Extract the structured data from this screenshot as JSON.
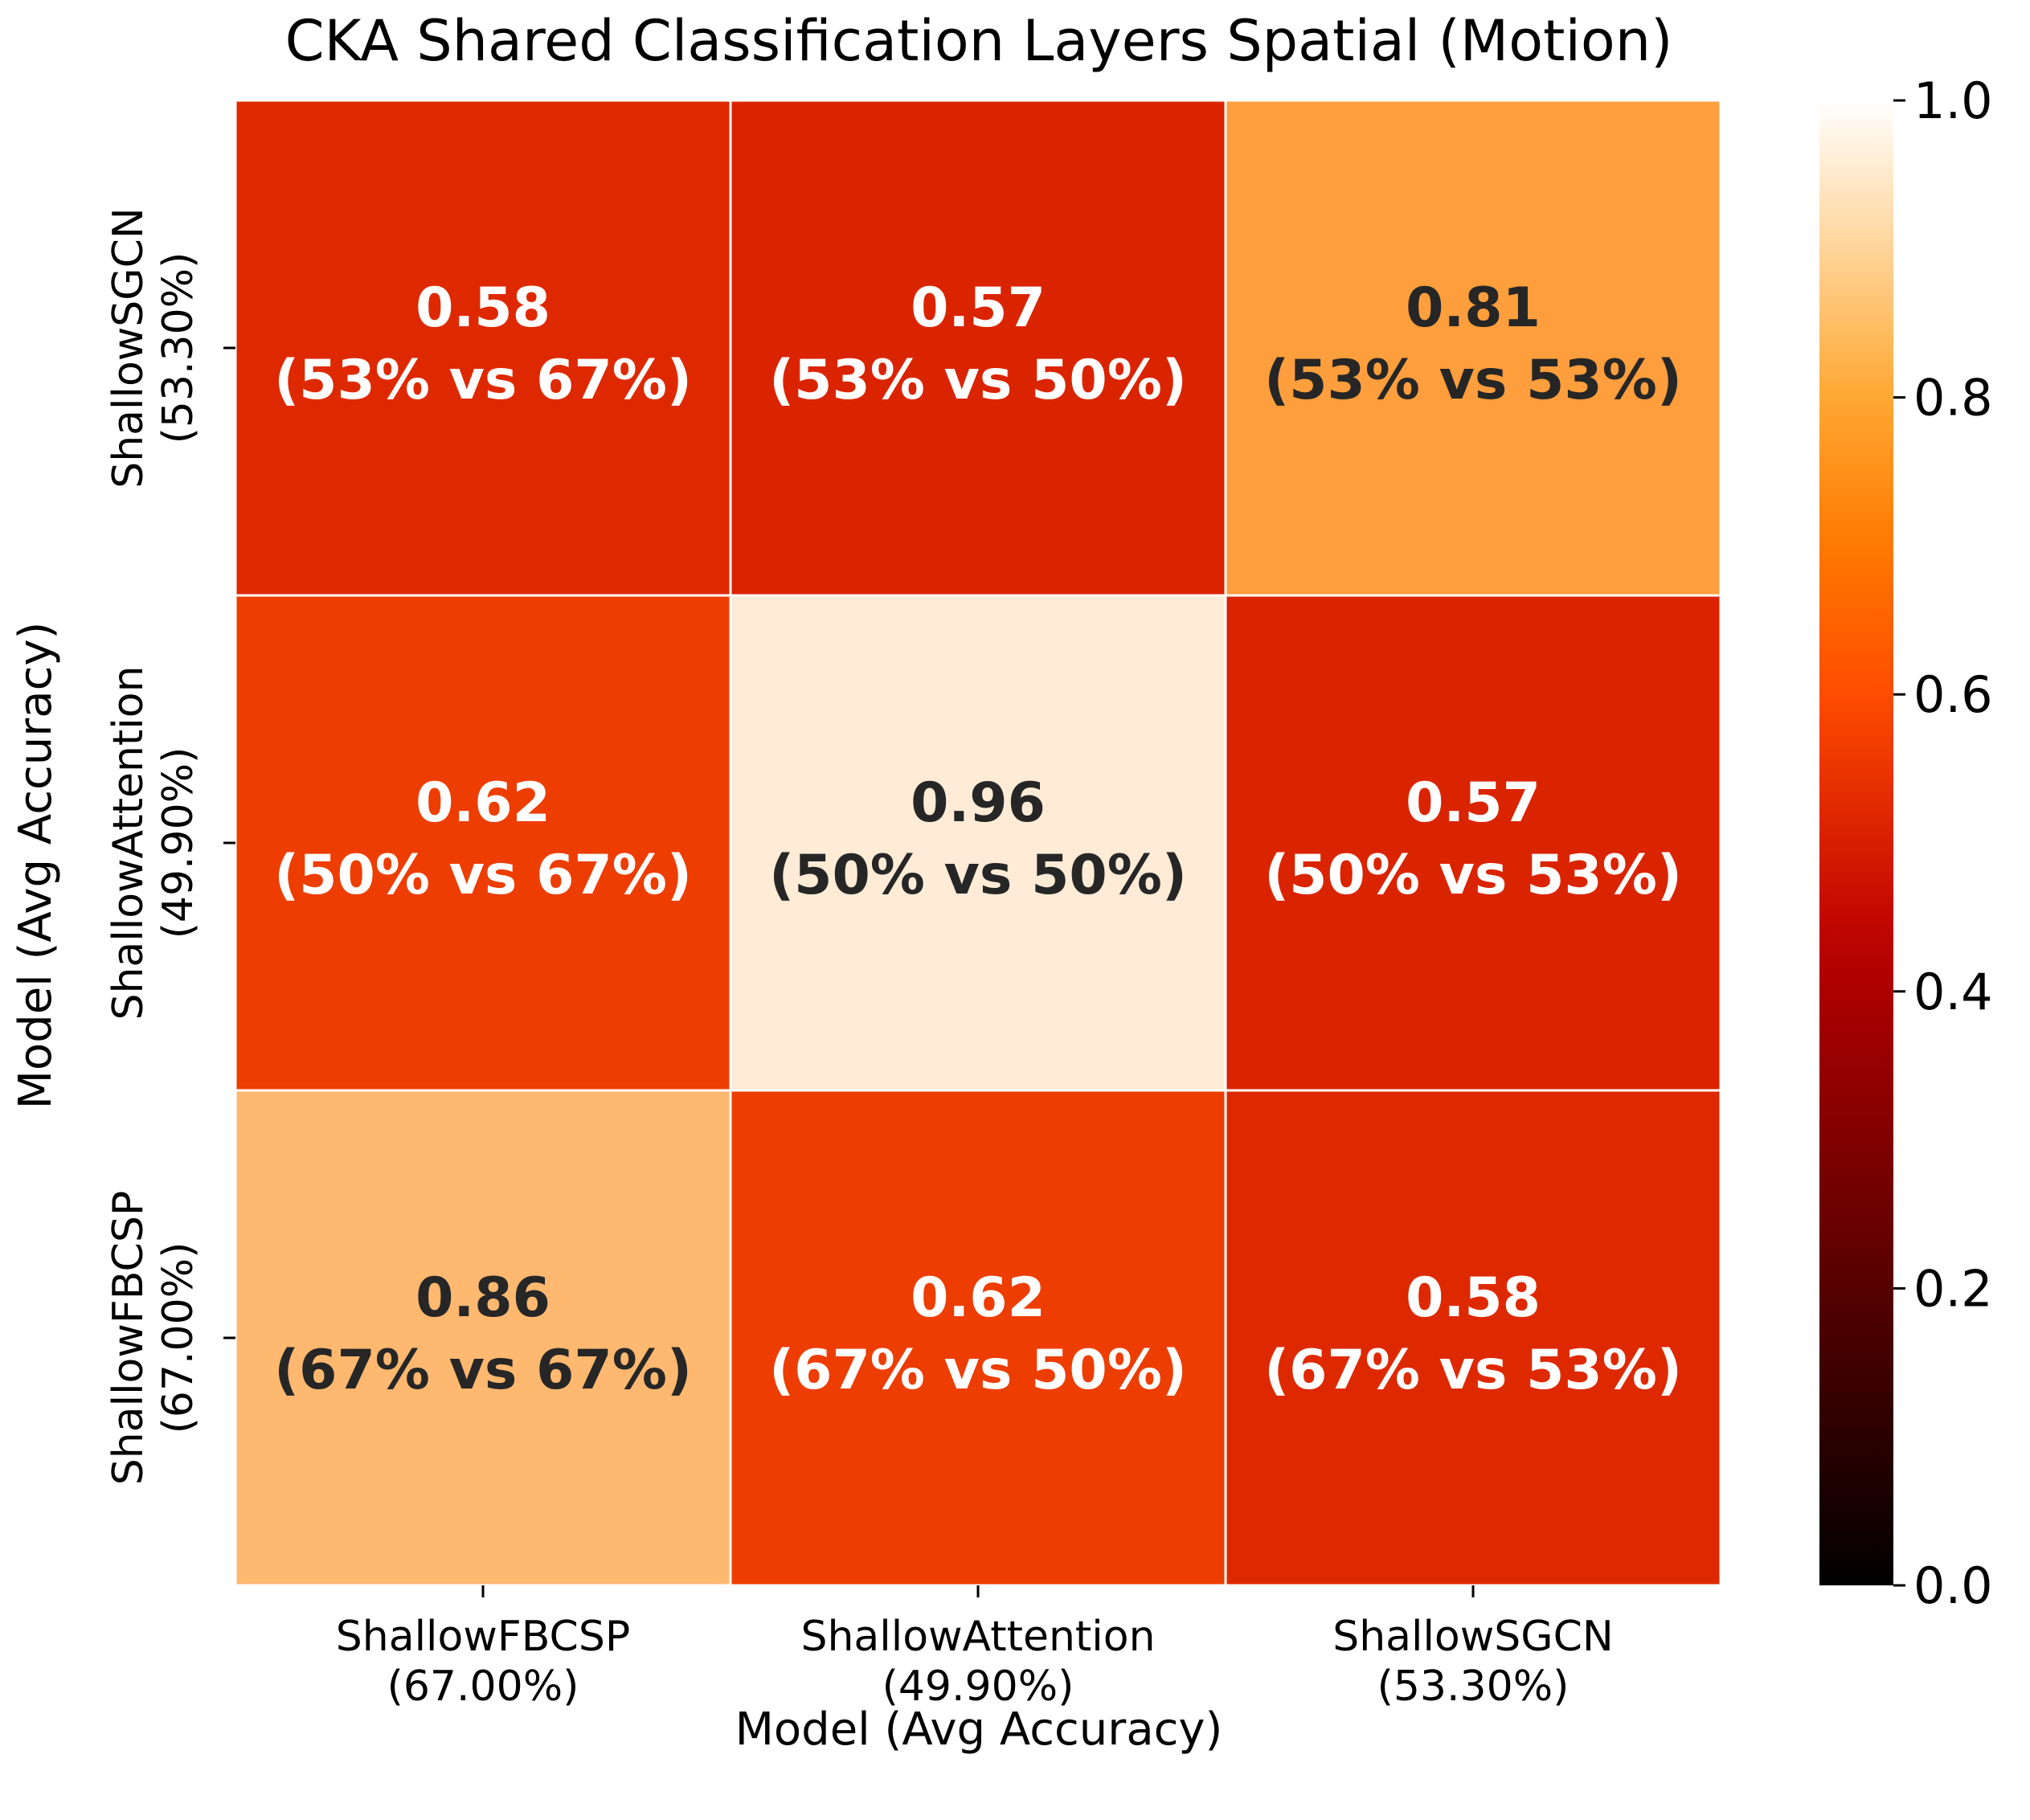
{
  "chart_data": {
    "type": "heatmap",
    "title": "CKA Shared Classification Layers Spatial (Motion)",
    "xlabel": "Model (Avg Accuracy)",
    "ylabel": "Model (Avg Accuracy)",
    "x_categories": [
      [
        "ShallowFBCSP",
        "(67.00%)"
      ],
      [
        "ShallowAttention",
        "(49.90%)"
      ],
      [
        "ShallowSGCN",
        "(53.30%)"
      ]
    ],
    "y_categories": [
      [
        "ShallowSGCN",
        "(53.30%)"
      ],
      [
        "ShallowAttention",
        "(49.90%)"
      ],
      [
        "ShallowFBCSP",
        "(67.00%)"
      ]
    ],
    "values": [
      [
        0.58,
        0.57,
        0.81
      ],
      [
        0.62,
        0.96,
        0.57
      ],
      [
        0.86,
        0.62,
        0.58
      ]
    ],
    "cell_labels": [
      [
        [
          "0.58",
          "(53% vs 67%)"
        ],
        [
          "0.57",
          "(53% vs 50%)"
        ],
        [
          "0.81",
          "(53% vs 53%)"
        ]
      ],
      [
        [
          "0.62",
          "(50% vs 67%)"
        ],
        [
          "0.96",
          "(50% vs 50%)"
        ],
        [
          "0.57",
          "(50% vs 53%)"
        ]
      ],
      [
        [
          "0.86",
          "(67% vs 67%)"
        ],
        [
          "0.62",
          "(67% vs 50%)"
        ],
        [
          "0.58",
          "(67% vs 53%)"
        ]
      ]
    ],
    "colormap": "gist_heat",
    "vmin": 0.0,
    "vmax": 1.0,
    "colorbar_ticks": [
      "0.0",
      "0.2",
      "0.4",
      "0.6",
      "0.8",
      "1.0"
    ],
    "text_color_light": "#ffffff",
    "text_color_dark": "#262626",
    "grid_line_color": "#ffffff"
  }
}
